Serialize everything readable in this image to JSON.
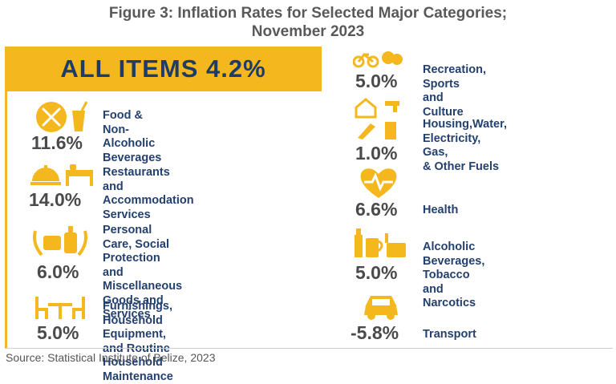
{
  "title_line1": "Figure 3: Inflation Rates for Selected Major Categories;",
  "title_line2": "November 2023",
  "banner": "ALL ITEMS 4.2%",
  "source": "Source: Statistical Institute of Belize, 2023",
  "colors": {
    "accent": "#f4b81e",
    "label": "#23406f",
    "value": "#4a4a4a"
  },
  "chart_data": {
    "type": "table",
    "title": "Figure 3: Inflation Rates for Selected Major Categories; November 2023",
    "all_items": 4.2,
    "categories": [
      "Food & Non-Alcoholic Beverages",
      "Restaurants and Accommodation Services",
      "Personal Care, Social Protection and Miscellaneous Goods and Services",
      "Furnishings, Household Equipment, and Routine Household Maintenance",
      "Recreation, Sports and Culture",
      "Housing,Water, Electricity, Gas, & Other Fuels",
      "Health",
      "Alcoholic Beverages, Tobacco and Narcotics",
      "Transport"
    ],
    "values": [
      11.6,
      14.0,
      6.0,
      5.0,
      5.0,
      1.0,
      6.6,
      5.0,
      -5.8
    ],
    "unit": "%"
  },
  "items": [
    {
      "value": "11.6%",
      "label": [
        "Food &",
        "Non-Alcoholic",
        "Beverages"
      ],
      "icon": "food-icon"
    },
    {
      "value": "14.0%",
      "label": [
        "Restaurants and",
        "Accommodation",
        "Services"
      ],
      "icon": "restaurant-icon"
    },
    {
      "value": "6.0%",
      "label": [
        "Personal Care, Social",
        "Protection and",
        "Miscellaneous Goods and",
        "Services"
      ],
      "icon": "personal-care-icon"
    },
    {
      "value": "5.0%",
      "label": [
        "Furnishings, Household",
        "Equipment, and Routine",
        "Household Maintenance"
      ],
      "icon": "furniture-icon"
    },
    {
      "value": "5.0%",
      "label": [
        "Recreation, Sports",
        "and Culture"
      ],
      "icon": "recreation-icon"
    },
    {
      "value": "1.0%",
      "label": [
        "Housing,Water,",
        "Electricity, Gas,",
        "& Other Fuels"
      ],
      "icon": "housing-icon"
    },
    {
      "value": "6.6%",
      "label": [
        "Health"
      ],
      "icon": "health-icon"
    },
    {
      "value": "5.0%",
      "label": [
        "Alcoholic",
        "Beverages, Tobacco",
        "and Narcotics"
      ],
      "icon": "alcohol-icon"
    },
    {
      "value": "-5.8%",
      "label": [
        "Transport"
      ],
      "icon": "transport-icon"
    }
  ]
}
